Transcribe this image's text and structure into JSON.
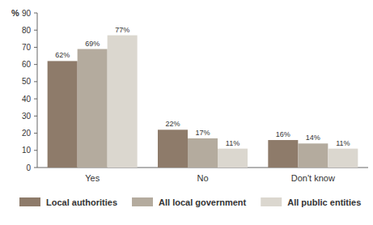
{
  "chart_data": {
    "type": "bar",
    "y_label": "%",
    "categories": [
      "Yes",
      "No",
      "Don't know"
    ],
    "series": [
      {
        "name": "Local authorities",
        "color": "#8e7b6a",
        "values": [
          62,
          22,
          16
        ],
        "value_labels": [
          "62%",
          "22%",
          "16%"
        ]
      },
      {
        "name": "All local government",
        "color": "#b4ab9e",
        "values": [
          69,
          17,
          14
        ],
        "value_labels": [
          "69%",
          "17%",
          "14%"
        ]
      },
      {
        "name": "All public entities",
        "color": "#dbd7cf",
        "values": [
          77,
          11,
          11
        ],
        "value_labels": [
          "77%",
          "11%",
          "11%"
        ]
      }
    ],
    "ylim": [
      0,
      90
    ],
    "yticks": [
      0,
      10,
      20,
      30,
      40,
      50,
      60,
      70,
      80,
      90
    ],
    "grid": false,
    "data_labels": true,
    "legend": "bottom"
  }
}
